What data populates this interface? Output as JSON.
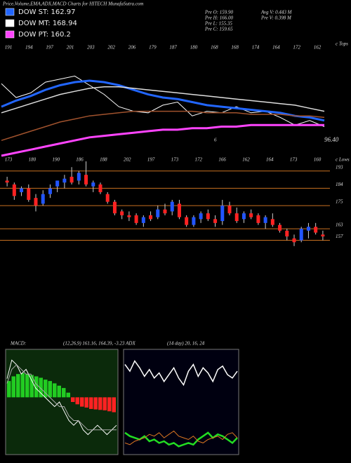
{
  "header": {
    "title": "Price,Volume,EMA,ADX,MACD Charts for HITECH MunafaSutra.com"
  },
  "legend": [
    {
      "label": "DOW ST: 162.97",
      "color": "#2266ff"
    },
    {
      "label": "DOW MT: 168.94",
      "color": "#ffffff"
    },
    {
      "label": "DOW PT: 160.2",
      "color": "#ff44ff"
    }
  ],
  "info": [
    "Pre  O: 159.90",
    "Pre  H: 166.00",
    "Pre  L: 155.35",
    "Pre  C: 159.65",
    "Avg  V: 0.443 M",
    "Pre  V: 0.398 M"
  ],
  "macd_text": [
    "MACD:",
    "(12,26,9) 161.16, 164.39, -3.23 ADX",
    "(14 day) 20, 16, 24"
  ],
  "chart_data": [
    {
      "type": "line",
      "tops_label": "c Tops",
      "lows_label": "c Lows",
      "tops": [
        191,
        194,
        197,
        201,
        203,
        202,
        206,
        179,
        187,
        180,
        168,
        168,
        174,
        164,
        172,
        162
      ],
      "lows": [
        173,
        180,
        190,
        186,
        188,
        202,
        197,
        173,
        172,
        166,
        162,
        164,
        173,
        160
      ],
      "annotations": [
        "6",
        "96.40"
      ],
      "ylim": [
        140,
        205
      ],
      "series": [
        {
          "color": "#ffffff",
          "width": 1,
          "values": [
            187,
            178,
            181,
            188,
            190,
            192,
            186,
            180,
            172,
            169,
            168,
            173,
            175,
            166,
            169,
            168,
            172,
            168,
            169,
            165,
            160,
            163,
            159
          ]
        },
        {
          "color": "#2266ff",
          "width": 3,
          "values": [
            172,
            176,
            179,
            183,
            186,
            188,
            189,
            188,
            186,
            183,
            180,
            178,
            177,
            175,
            173,
            172,
            171,
            170,
            169,
            168,
            166,
            165,
            163
          ]
        },
        {
          "color": "#dddddd",
          "width": 1.5,
          "values": [
            168,
            171,
            174,
            177,
            180,
            182,
            184,
            185,
            185,
            184,
            183,
            182,
            181,
            180,
            179,
            178,
            177,
            176,
            175,
            174,
            173,
            171,
            169
          ]
        },
        {
          "color": "#a0522d",
          "width": 1.5,
          "values": [
            150,
            153,
            156,
            159,
            162,
            164,
            166,
            167,
            168,
            169,
            169,
            169,
            169,
            169,
            168,
            168,
            168,
            167,
            167,
            167,
            166,
            166,
            165
          ]
        },
        {
          "color": "#ff44ff",
          "width": 3,
          "values": [
            140,
            142,
            144,
            146,
            148,
            150,
            152,
            153,
            154,
            155,
            156,
            157,
            157,
            158,
            158,
            159,
            159,
            160,
            160,
            160,
            160,
            160,
            160
          ]
        }
      ]
    },
    {
      "type": "candlestick",
      "ylim": [
        147,
        198
      ],
      "yticks": [
        193,
        184,
        175,
        163,
        157
      ],
      "up_color": "#2255ff",
      "down_color": "#ff2222",
      "grid_color": "#c87020",
      "open": [
        188,
        186,
        182,
        184,
        179,
        176,
        181,
        185,
        187,
        190,
        188,
        191,
        185,
        186,
        181,
        177,
        172,
        170,
        170,
        166,
        170,
        169,
        173,
        172,
        176,
        169,
        165,
        168,
        171,
        168,
        167,
        175,
        171,
        168,
        171,
        170,
        166,
        168,
        165,
        162,
        158,
        157,
        162,
        164,
        160
      ],
      "high": [
        190,
        187,
        185,
        186,
        181,
        183,
        186,
        188,
        191,
        195,
        193,
        198,
        188,
        187,
        182,
        178,
        173,
        172,
        171,
        170,
        172,
        175,
        176,
        178,
        178,
        170,
        170,
        172,
        173,
        170,
        178,
        177,
        174,
        172,
        173,
        171,
        170,
        171,
        166,
        163,
        160,
        164,
        166,
        166,
        162
      ],
      "low": [
        185,
        178,
        180,
        177,
        172,
        175,
        179,
        182,
        184,
        186,
        186,
        185,
        182,
        181,
        176,
        170,
        168,
        167,
        165,
        164,
        167,
        168,
        170,
        170,
        168,
        164,
        164,
        166,
        167,
        164,
        165,
        170,
        166,
        166,
        168,
        165,
        163,
        164,
        161,
        157,
        154,
        156,
        158,
        160,
        157
      ],
      "close": [
        187,
        180,
        184,
        178,
        175,
        181,
        184,
        188,
        189,
        187,
        192,
        186,
        187,
        182,
        177,
        171,
        170,
        169,
        166,
        169,
        168,
        173,
        171,
        177,
        169,
        165,
        169,
        171,
        168,
        166,
        175,
        171,
        167,
        171,
        169,
        166,
        169,
        165,
        162,
        159,
        156,
        163,
        164,
        161,
        159
      ]
    },
    {
      "type": "combo",
      "ylim": [
        -12,
        10
      ],
      "up_color": "#22cc22",
      "down_color": "#ff2222",
      "hist": [
        3.5,
        4.5,
        5,
        5.2,
        5,
        4.8,
        4.5,
        4.2,
        3.8,
        3.5,
        3,
        2.5,
        2,
        1,
        -1,
        -1.5,
        -2,
        -2.2,
        -2.5,
        -2.6,
        -2.7,
        -2.8,
        -3,
        -3.2
      ],
      "series": [
        {
          "color": "#ffffff",
          "values": [
            4,
            8,
            7,
            5,
            6,
            4,
            2,
            1,
            0,
            -1,
            -2,
            -1,
            -3,
            -5,
            -6,
            -5,
            -7,
            -8,
            -7,
            -6,
            -7,
            -8,
            -7,
            -6
          ]
        },
        {
          "color": "#aaaaaa",
          "values": [
            3,
            6,
            7,
            6,
            5,
            5,
            3,
            2,
            1,
            0,
            -1,
            -2,
            -2,
            -4,
            -5,
            -5,
            -6,
            -7,
            -7,
            -7,
            -7,
            -7,
            -7,
            -7
          ]
        }
      ]
    },
    {
      "type": "line",
      "ylim": [
        0,
        60
      ],
      "series": [
        {
          "color": "#ffffff",
          "width": 1.5,
          "values": [
            52,
            48,
            54,
            50,
            45,
            49,
            44,
            47,
            42,
            46,
            50,
            44,
            40,
            48,
            52,
            45,
            50,
            47,
            42,
            49,
            51,
            46,
            44,
            48
          ]
        },
        {
          "color": "#22dd22",
          "width": 2.5,
          "values": [
            12,
            10,
            9,
            8,
            10,
            7,
            8,
            6,
            7,
            5,
            6,
            4,
            5,
            6,
            5,
            8,
            10,
            12,
            9,
            11,
            10,
            8,
            6,
            9
          ]
        },
        {
          "color": "#dd7722",
          "width": 1,
          "values": [
            6,
            5,
            7,
            8,
            9,
            11,
            10,
            12,
            9,
            11,
            13,
            10,
            9,
            8,
            10,
            7,
            6,
            8,
            9,
            10,
            8,
            11,
            12,
            9
          ]
        }
      ]
    }
  ]
}
